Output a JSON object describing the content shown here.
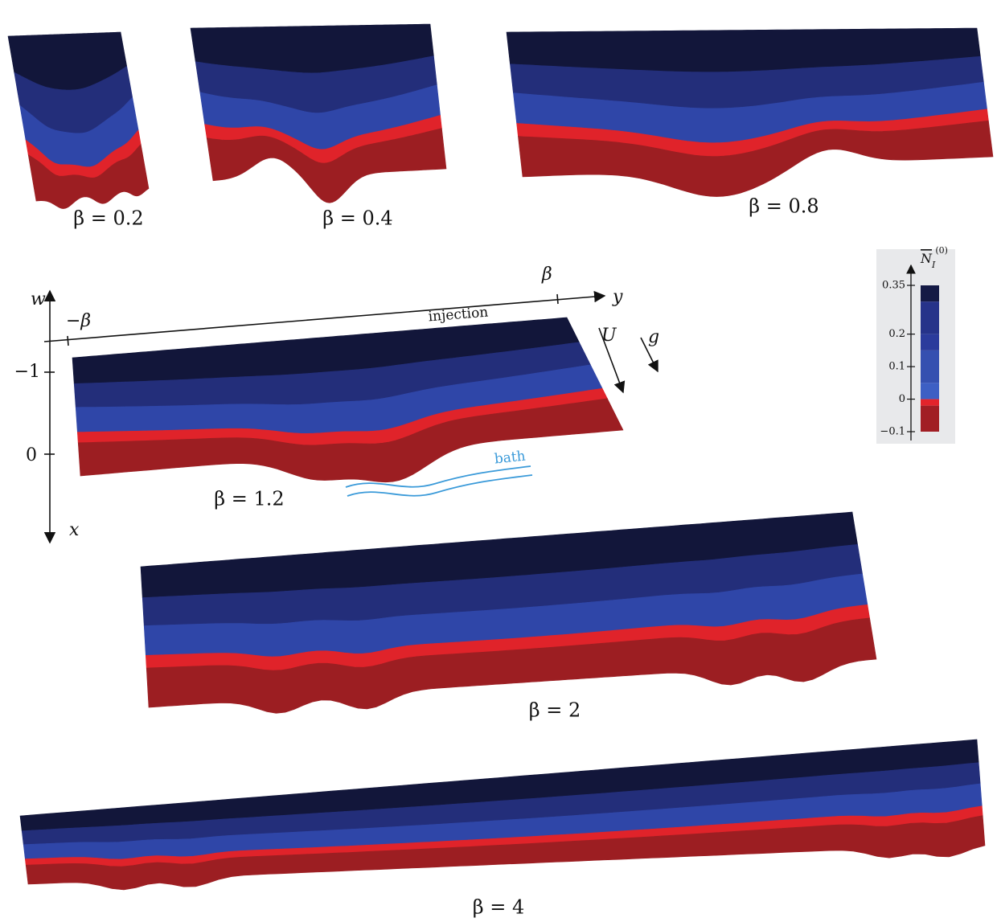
{
  "panels": [
    {
      "label": "β = 0.2"
    },
    {
      "label": "β = 0.4"
    },
    {
      "label": "β = 0.8"
    },
    {
      "label": "β = 1.2"
    },
    {
      "label": "β = 2"
    },
    {
      "label": "β = 4"
    }
  ],
  "axes": {
    "w": "w",
    "y": "y",
    "x": "x",
    "y_minus": "−β",
    "y_plus": "β",
    "w_ticks": [
      "−1",
      "0"
    ],
    "injection": "injection",
    "U": "U",
    "g": "g",
    "bath": "bath"
  },
  "colorbar": {
    "title": {
      "base": "N",
      "sub": "I",
      "sup": "(0)"
    },
    "lim": [
      -0.1,
      0.35
    ],
    "ticks": [
      0.35,
      0.2,
      0.1,
      0,
      {
        "value": -0.1,
        "label": "−0.1"
      }
    ],
    "bands": [
      {
        "from": 0.3,
        "to": 0.35,
        "color": "#141a45"
      },
      {
        "from": 0.2,
        "to": 0.3,
        "color": "#26338a"
      },
      {
        "from": 0.15,
        "to": 0.2,
        "color": "#2b3b9c"
      },
      {
        "from": 0.05,
        "to": 0.15,
        "color": "#3550b0"
      },
      {
        "from": 0,
        "to": 0.05,
        "color": "#3d5fc4"
      },
      {
        "from": -0.02,
        "to": 0,
        "color": "#e3242b"
      },
      {
        "from": -0.1,
        "to": -0.02,
        "color": "#a11e24"
      }
    ]
  }
}
